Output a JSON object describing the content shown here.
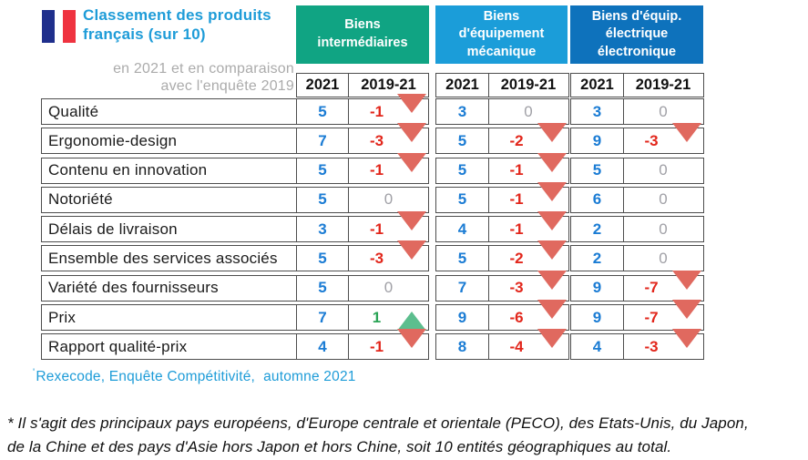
{
  "title": "Classement des produits français (sur 10)",
  "subtitle_line1": "en 2021 et en comparaison",
  "subtitle_line2": "avec l'enquête 2019",
  "columns": {
    "year": "2021",
    "change": "2019-21"
  },
  "groups": [
    {
      "label": "Biens intermédiaires",
      "color": "#10A483"
    },
    {
      "label": "Biens d'équipement mécanique",
      "color": "#1B9DD9"
    },
    {
      "label": "Biens d'équip. électrique électronique",
      "color": "#0E72BC"
    }
  ],
  "source_marker": "'",
  "source": "Rexecode, Enquête Compétitivité,  automne 2021",
  "footnote_line1": "* Il s'agit des principaux pays européens, d'Europe centrale et orientale (PECO), des Etats-Unis, du Japon,",
  "footnote_line2": "de la Chine et des pays d'Asie hors Japon et hors Chine, soit 10 entités géographiques au total.",
  "colors": {
    "title_blue": "#1E9CD8",
    "subtitle_gray": "#ABABAB",
    "flag_blue": "#1F2F8C",
    "flag_red": "#EF3340",
    "value_blue": "#1B7CD4",
    "change_red": "#E2261B",
    "change_green": "#2BA456",
    "change_zero_gray": "#A0A0A6",
    "triangle_red": "#E0695F",
    "triangle_green": "#5CBE8E"
  },
  "chart_data": {
    "type": "table",
    "title": "Classement des produits français (sur 10) en 2021 et en comparaison avec l'enquête 2019",
    "column_groups": [
      "Biens intermédiaires",
      "Biens d'équipement mécanique",
      "Biens d'équip. électrique électronique"
    ],
    "columns_per_group": [
      "2021",
      "2019-21"
    ],
    "rows": [
      {
        "label": "Qualité",
        "values": [
          {
            "v": 5,
            "c": "-1",
            "dir": "down"
          },
          {
            "v": 3,
            "c": "0",
            "dir": "none"
          },
          {
            "v": 3,
            "c": "0",
            "dir": "none"
          }
        ]
      },
      {
        "label": "Ergonomie-design",
        "values": [
          {
            "v": 7,
            "c": "-3",
            "dir": "down"
          },
          {
            "v": 5,
            "c": "-2",
            "dir": "down"
          },
          {
            "v": 9,
            "c": "-3",
            "dir": "down"
          }
        ]
      },
      {
        "label": "Contenu en innovation",
        "values": [
          {
            "v": 5,
            "c": "-1",
            "dir": "down"
          },
          {
            "v": 5,
            "c": "-1",
            "dir": "down"
          },
          {
            "v": 5,
            "c": "0",
            "dir": "none"
          }
        ]
      },
      {
        "label": "Notoriété",
        "values": [
          {
            "v": 5,
            "c": "0",
            "dir": "none"
          },
          {
            "v": 5,
            "c": "-1",
            "dir": "down"
          },
          {
            "v": 6,
            "c": "0",
            "dir": "none"
          }
        ]
      },
      {
        "label": "Délais de livraison",
        "values": [
          {
            "v": 3,
            "c": "-1",
            "dir": "down"
          },
          {
            "v": 4,
            "c": "-1",
            "dir": "down"
          },
          {
            "v": 2,
            "c": "0",
            "dir": "none"
          }
        ]
      },
      {
        "label": "Ensemble des services associés",
        "values": [
          {
            "v": 5,
            "c": "-3",
            "dir": "down"
          },
          {
            "v": 5,
            "c": "-2",
            "dir": "down"
          },
          {
            "v": 2,
            "c": "0",
            "dir": "none"
          }
        ]
      },
      {
        "label": "Variété des fournisseurs",
        "values": [
          {
            "v": 5,
            "c": "0",
            "dir": "none"
          },
          {
            "v": 7,
            "c": "-3",
            "dir": "down"
          },
          {
            "v": 9,
            "c": "-7",
            "dir": "down"
          }
        ]
      },
      {
        "label": "Prix",
        "values": [
          {
            "v": 7,
            "c": "1",
            "dir": "up"
          },
          {
            "v": 9,
            "c": "-6",
            "dir": "down"
          },
          {
            "v": 9,
            "c": "-7",
            "dir": "down"
          }
        ]
      },
      {
        "label": "Rapport qualité-prix",
        "values": [
          {
            "v": 4,
            "c": "-1",
            "dir": "down"
          },
          {
            "v": 8,
            "c": "-4",
            "dir": "down"
          },
          {
            "v": 4,
            "c": "-3",
            "dir": "down"
          }
        ]
      }
    ],
    "source": "Rexecode, Enquête Compétitivité, automne 2021"
  }
}
